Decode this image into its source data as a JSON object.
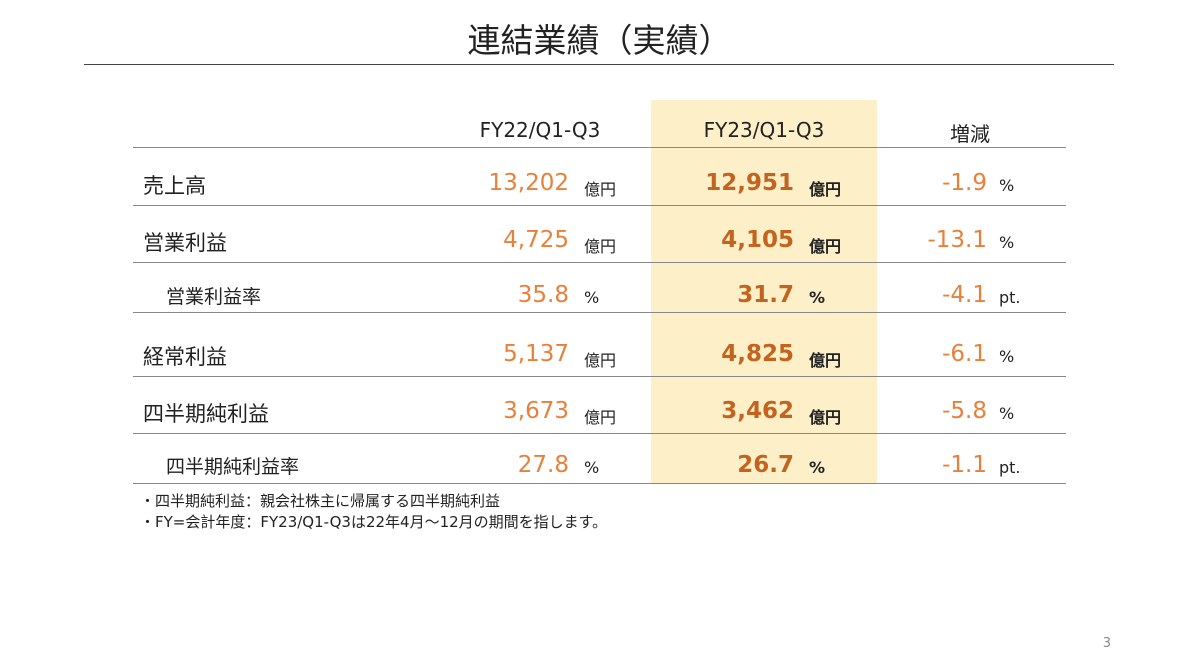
{
  "title": "連結業績（実績）",
  "headers": {
    "fy22": "FY22/Q1-Q3",
    "fy23": "FY23/Q1-Q3",
    "change": "増減"
  },
  "rows": [
    {
      "label": "売上高",
      "fy22": "13,202",
      "fy22_unit": "億円",
      "fy23": "12,951",
      "fy23_unit": "億円",
      "change": "-1.9",
      "change_unit": "%"
    },
    {
      "label": "営業利益",
      "fy22": "4,725",
      "fy22_unit": "億円",
      "fy23": "4,105",
      "fy23_unit": "億円",
      "change": "-13.1",
      "change_unit": "%"
    },
    {
      "label": "営業利益率",
      "fy22": "35.8",
      "fy22_unit": "%",
      "fy23": "31.7",
      "fy23_unit": "%",
      "change": "-4.1",
      "change_unit": "pt."
    },
    {
      "label": "経常利益",
      "fy22": "5,137",
      "fy22_unit": "億円",
      "fy23": "4,825",
      "fy23_unit": "億円",
      "change": "-6.1",
      "change_unit": "%"
    },
    {
      "label": "四半期純利益",
      "fy22": "3,673",
      "fy22_unit": "億円",
      "fy23": "3,462",
      "fy23_unit": "億円",
      "change": "-5.8",
      "change_unit": "%"
    },
    {
      "label": "四半期純利益率",
      "fy22": "27.8",
      "fy22_unit": "%",
      "fy23": "26.7",
      "fy23_unit": "%",
      "change": "-1.1",
      "change_unit": "pt."
    }
  ],
  "notes": [
    "・四半期純利益：親会社株主に帰属する四半期純利益",
    "・FY=会計年度：FY23/Q1-Q3は22年4月～12月の期間を指します。"
  ],
  "page_number": "3",
  "colors": {
    "highlight": "#FDEFC8",
    "orange": "#E8803A",
    "orange_bold": "#C4631E"
  }
}
